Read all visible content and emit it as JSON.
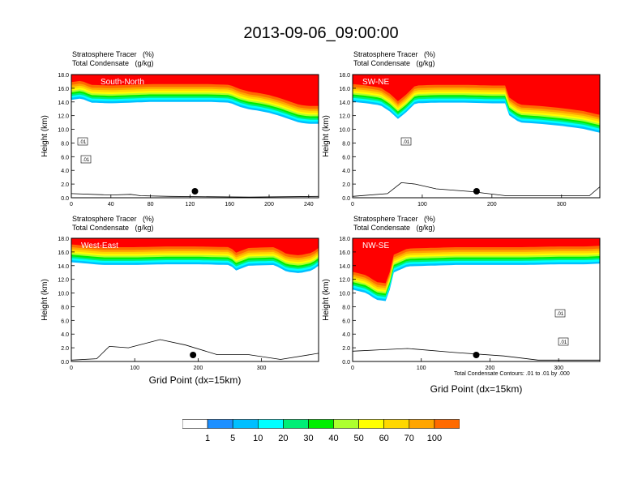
{
  "title": "2013-09-06_09:00:00",
  "panel_label_line1": "Stratosphere Tracer   (%)",
  "panel_label_line2": "Total Condensate   (g/kg)",
  "xlabel": "Grid Point (dx=15km)",
  "contour_note": "Total Condensate Contours: .01 to .01 by .000",
  "colorbar": {
    "levels": [
      "1",
      "5",
      "10",
      "20",
      "30",
      "40",
      "50",
      "60",
      "70",
      "100"
    ],
    "colors": [
      "#ffffff",
      "#1e90ff",
      "#00bfff",
      "#00ffff",
      "#00ee76",
      "#00ee00",
      "#adff2f",
      "#ffff00",
      "#ffd700",
      "#ffa500",
      "#ff6a00",
      "#ff0000"
    ]
  },
  "chart_data": [
    {
      "type": "heatmap",
      "name": "South-North",
      "ylabel": "Height (km)",
      "ylim": [
        0,
        18
      ],
      "yticks": [
        "0.0",
        "2.0",
        "4.0",
        "6.0",
        "8.0",
        "10.0",
        "12.0",
        "14.0",
        "16.0",
        "18.0"
      ],
      "xlim": [
        0,
        250
      ],
      "xticks": [
        "0",
        "40",
        "80",
        "120",
        "160",
        "200",
        "240"
      ],
      "tropopause_km": [
        [
          0,
          14.8
        ],
        [
          10,
          15.0
        ],
        [
          20,
          14.4
        ],
        [
          40,
          14.3
        ],
        [
          60,
          14.4
        ],
        [
          80,
          14.5
        ],
        [
          100,
          14.5
        ],
        [
          120,
          14.5
        ],
        [
          140,
          14.5
        ],
        [
          160,
          14.4
        ],
        [
          170,
          13.8
        ],
        [
          180,
          13.4
        ],
        [
          190,
          13.2
        ],
        [
          200,
          12.9
        ],
        [
          210,
          12.5
        ],
        [
          220,
          12.0
        ],
        [
          230,
          11.5
        ],
        [
          240,
          11.3
        ],
        [
          250,
          11.3
        ]
      ],
      "terrain_km": [
        [
          0,
          0.6
        ],
        [
          40,
          0.4
        ],
        [
          60,
          0.5
        ],
        [
          70,
          0.3
        ],
        [
          100,
          0.2
        ],
        [
          180,
          0.1
        ],
        [
          250,
          0.2
        ]
      ],
      "contour_labels": [
        ".01",
        ".01"
      ],
      "marker_x": 125
    },
    {
      "type": "heatmap",
      "name": "SW-NE",
      "ylabel": "Height (km)",
      "ylim": [
        0,
        18
      ],
      "yticks": [
        "0.0",
        "2.0",
        "4.0",
        "6.0",
        "8.0",
        "10.0",
        "12.0",
        "14.0",
        "16.0",
        "18.0"
      ],
      "xlim": [
        0,
        355
      ],
      "xticks": [
        "0",
        "100",
        "200",
        "300"
      ],
      "tropopause_km": [
        [
          0,
          14.5
        ],
        [
          20,
          14.3
        ],
        [
          40,
          14.0
        ],
        [
          55,
          13.0
        ],
        [
          65,
          12.0
        ],
        [
          75,
          12.8
        ],
        [
          90,
          14.3
        ],
        [
          120,
          14.4
        ],
        [
          160,
          14.4
        ],
        [
          200,
          14.3
        ],
        [
          220,
          14.3
        ],
        [
          225,
          12.5
        ],
        [
          240,
          11.5
        ],
        [
          270,
          11.3
        ],
        [
          300,
          11.0
        ],
        [
          330,
          10.6
        ],
        [
          355,
          10.0
        ]
      ],
      "terrain_km": [
        [
          0,
          0.2
        ],
        [
          50,
          0.6
        ],
        [
          70,
          2.2
        ],
        [
          90,
          2.0
        ],
        [
          120,
          1.3
        ],
        [
          170,
          0.9
        ],
        [
          220,
          0.3
        ],
        [
          340,
          0.3
        ],
        [
          355,
          1.6
        ]
      ],
      "contour_labels": [
        ".01"
      ],
      "marker_x": 178
    },
    {
      "type": "heatmap",
      "name": "West-East",
      "ylabel": "Height (km)",
      "ylim": [
        0,
        18
      ],
      "yticks": [
        "0.0",
        "2.0",
        "4.0",
        "6.0",
        "8.0",
        "10.0",
        "12.0",
        "14.0",
        "16.0",
        "18.0"
      ],
      "xlim": [
        0,
        390
      ],
      "xticks": [
        "0",
        "100",
        "200",
        "300"
      ],
      "tropopause_km": [
        [
          0,
          15.0
        ],
        [
          50,
          14.6
        ],
        [
          100,
          14.6
        ],
        [
          150,
          14.7
        ],
        [
          200,
          14.7
        ],
        [
          250,
          14.6
        ],
        [
          260,
          13.8
        ],
        [
          280,
          14.5
        ],
        [
          320,
          14.6
        ],
        [
          340,
          13.6
        ],
        [
          360,
          13.4
        ],
        [
          380,
          13.8
        ],
        [
          390,
          14.5
        ]
      ],
      "terrain_km": [
        [
          0,
          0.2
        ],
        [
          40,
          0.4
        ],
        [
          60,
          2.2
        ],
        [
          90,
          2.0
        ],
        [
          140,
          3.2
        ],
        [
          180,
          2.4
        ],
        [
          230,
          1.0
        ],
        [
          280,
          1.0
        ],
        [
          330,
          0.3
        ],
        [
          390,
          1.2
        ]
      ],
      "contour_labels": [],
      "marker_x": 192
    },
    {
      "type": "heatmap",
      "name": "NW-SE",
      "ylabel": "Height (km)",
      "ylim": [
        0,
        18
      ],
      "yticks": [
        "0.0",
        "2.0",
        "4.0",
        "6.0",
        "8.0",
        "10.0",
        "12.0",
        "14.0",
        "16.0",
        "18.0"
      ],
      "xlim": [
        0,
        360
      ],
      "xticks": [
        "0",
        "100",
        "200",
        "300"
      ],
      "tropopause_km": [
        [
          0,
          11.0
        ],
        [
          20,
          10.5
        ],
        [
          35,
          9.5
        ],
        [
          50,
          9.3
        ],
        [
          60,
          13.5
        ],
        [
          80,
          14.4
        ],
        [
          150,
          14.6
        ],
        [
          200,
          14.6
        ],
        [
          250,
          14.6
        ],
        [
          300,
          14.7
        ],
        [
          340,
          14.7
        ],
        [
          360,
          14.8
        ]
      ],
      "terrain_km": [
        [
          0,
          1.5
        ],
        [
          40,
          1.7
        ],
        [
          80,
          1.9
        ],
        [
          150,
          1.3
        ],
        [
          220,
          0.8
        ],
        [
          270,
          0.2
        ],
        [
          300,
          0.2
        ],
        [
          360,
          0.2
        ]
      ],
      "contour_labels": [
        ".01",
        ".01"
      ],
      "marker_x": 180
    }
  ]
}
